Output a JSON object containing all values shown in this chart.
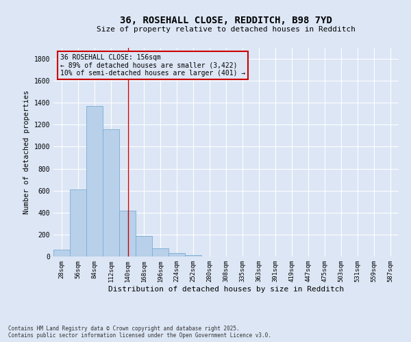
{
  "title_line1": "36, ROSEHALL CLOSE, REDDITCH, B98 7YD",
  "title_line2": "Size of property relative to detached houses in Redditch",
  "xlabel": "Distribution of detached houses by size in Redditch",
  "ylabel": "Number of detached properties",
  "categories": [
    "28sqm",
    "56sqm",
    "84sqm",
    "112sqm",
    "140sqm",
    "168sqm",
    "196sqm",
    "224sqm",
    "252sqm",
    "280sqm",
    "308sqm",
    "335sqm",
    "363sqm",
    "391sqm",
    "419sqm",
    "447sqm",
    "475sqm",
    "503sqm",
    "531sqm",
    "559sqm",
    "587sqm"
  ],
  "bar_values": [
    60,
    610,
    1370,
    1160,
    415,
    185,
    75,
    30,
    10,
    2,
    0,
    0,
    0,
    0,
    0,
    0,
    0,
    0,
    0,
    0,
    0
  ],
  "bar_color": "#b8d0ea",
  "bar_edge_color": "#7aadd4",
  "ylim": [
    0,
    1900
  ],
  "yticks": [
    0,
    200,
    400,
    600,
    800,
    1000,
    1200,
    1400,
    1600,
    1800
  ],
  "vline_x": 4.56,
  "vline_color": "#cc0000",
  "annotation_title": "36 ROSEHALL CLOSE: 156sqm",
  "annotation_line2": "← 89% of detached houses are smaller (3,422)",
  "annotation_line3": "10% of semi-detached houses are larger (401) →",
  "annotation_box_color": "#cc0000",
  "background_color": "#dce6f5",
  "grid_color": "#ffffff",
  "footer_line1": "Contains HM Land Registry data © Crown copyright and database right 2025.",
  "footer_line2": "Contains public sector information licensed under the Open Government Licence v3.0."
}
